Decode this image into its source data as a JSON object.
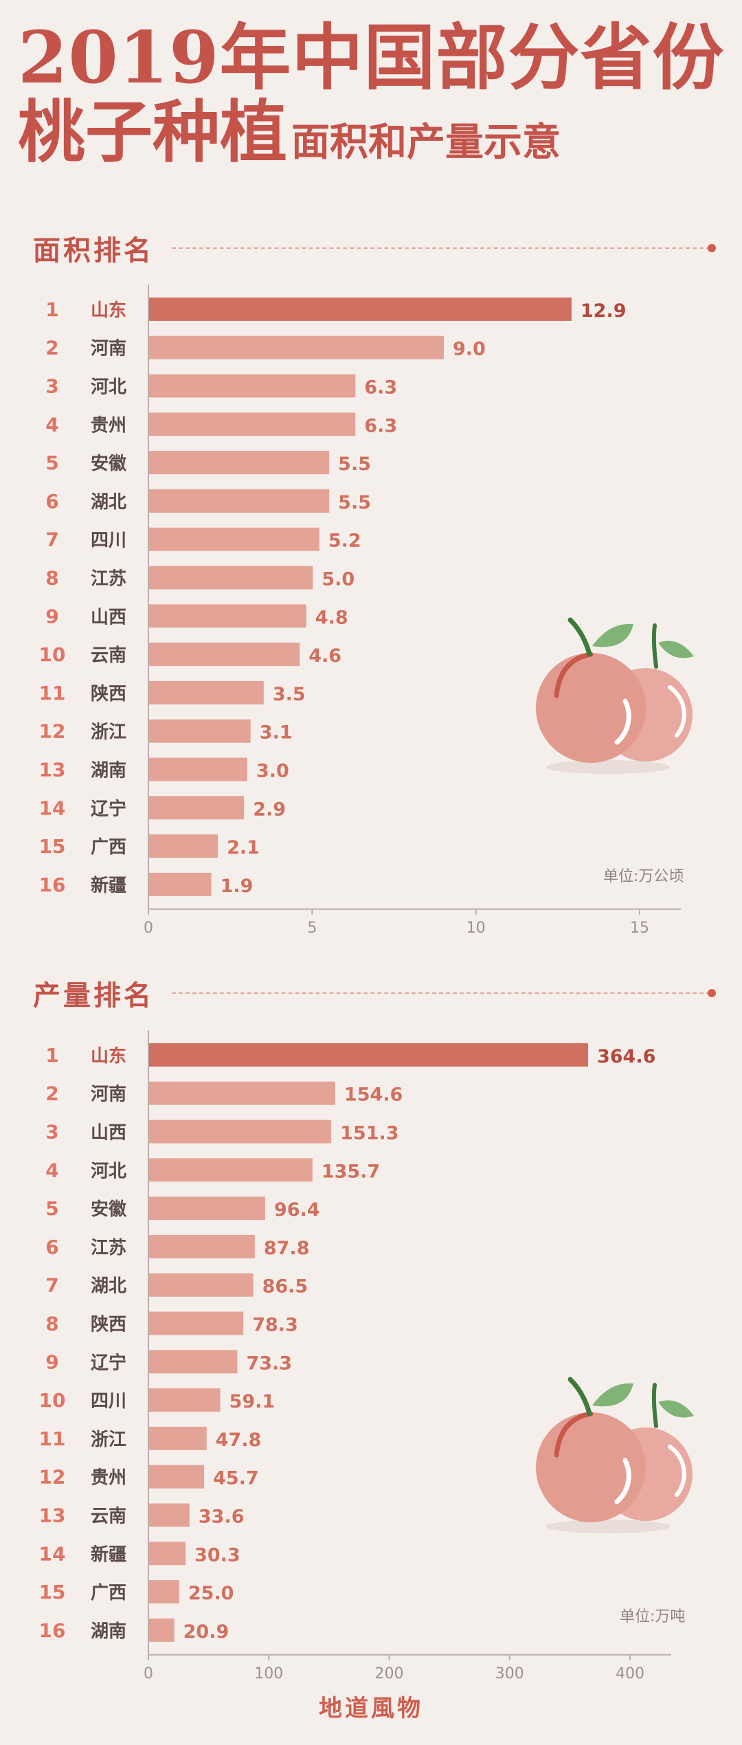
{
  "title": {
    "line1": "2019年中国部分省份",
    "line2_big": "桃子种植",
    "line2_small": "面积和产量示意"
  },
  "footer": "地道風物",
  "colors": {
    "accent": "#c4534a",
    "top_bar": "#cf7060",
    "bar": "#e3a497",
    "rank_text": "#e07464",
    "value_text": "#d1705e",
    "background": "#f5efec"
  },
  "chart_data": [
    {
      "type": "bar",
      "orientation": "horizontal",
      "title": "面积排名",
      "unit": "单位:万公顷",
      "ranks": [
        "1",
        "2",
        "3",
        "4",
        "5",
        "6",
        "7",
        "8",
        "9",
        "10",
        "11",
        "12",
        "13",
        "14",
        "15",
        "16"
      ],
      "categories": [
        "山东",
        "河南",
        "河北",
        "贵州",
        "安徽",
        "湖北",
        "四川",
        "江苏",
        "山西",
        "云南",
        "陕西",
        "浙江",
        "湖南",
        "辽宁",
        "广西",
        "新疆"
      ],
      "values": [
        12.9,
        9.0,
        6.3,
        6.3,
        5.5,
        5.5,
        5.2,
        5.0,
        4.8,
        4.6,
        3.5,
        3.1,
        3.0,
        2.9,
        2.1,
        1.9
      ],
      "value_labels": [
        "12.9",
        "9.0",
        "6.3",
        "6.3",
        "5.5",
        "5.5",
        "5.2",
        "5.0",
        "4.8",
        "4.6",
        "3.5",
        "3.1",
        "3.0",
        "2.9",
        "2.1",
        "1.9"
      ],
      "xlim": [
        0,
        15
      ],
      "xticks": [
        0,
        5,
        10,
        15
      ],
      "xtick_labels": [
        "0",
        "5",
        "10",
        "15"
      ]
    },
    {
      "type": "bar",
      "orientation": "horizontal",
      "title": "产量排名",
      "unit": "单位:万吨",
      "ranks": [
        "1",
        "2",
        "3",
        "4",
        "5",
        "6",
        "7",
        "8",
        "9",
        "10",
        "11",
        "12",
        "13",
        "14",
        "15",
        "16"
      ],
      "categories": [
        "山东",
        "河南",
        "山西",
        "河北",
        "安徽",
        "江苏",
        "湖北",
        "陕西",
        "辽宁",
        "四川",
        "浙江",
        "贵州",
        "云南",
        "新疆",
        "广西",
        "湖南"
      ],
      "values": [
        364.6,
        154.6,
        151.3,
        135.7,
        96.4,
        87.8,
        86.5,
        78.3,
        73.3,
        59.1,
        47.8,
        45.7,
        33.6,
        30.3,
        25.0,
        20.9
      ],
      "value_labels": [
        "364.6",
        "154.6",
        "151.3",
        "135.7",
        "96.4",
        "87.8",
        "86.5",
        "78.3",
        "73.3",
        "59.1",
        "47.8",
        "45.7",
        "33.6",
        "30.3",
        "25.0",
        "20.9"
      ],
      "xlim": [
        0,
        400
      ],
      "xticks": [
        0,
        100,
        200,
        300,
        400
      ],
      "xtick_labels": [
        "0",
        "100",
        "200",
        "300",
        "400"
      ]
    }
  ]
}
